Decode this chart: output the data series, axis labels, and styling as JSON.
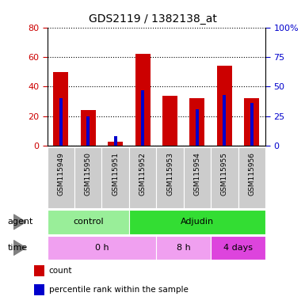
{
  "title": "GDS2119 / 1382138_at",
  "samples": [
    "GSM115949",
    "GSM115950",
    "GSM115951",
    "GSM115952",
    "GSM115953",
    "GSM115954",
    "GSM115955",
    "GSM115956"
  ],
  "count_values": [
    50,
    24,
    3,
    62,
    34,
    32,
    54,
    32
  ],
  "percentile_values": [
    40,
    25,
    8,
    47,
    0,
    31,
    43,
    36
  ],
  "count_color": "#cc0000",
  "percentile_color": "#0000cc",
  "left_ylim": [
    0,
    80
  ],
  "right_ylim": [
    0,
    100
  ],
  "left_yticks": [
    0,
    20,
    40,
    60,
    80
  ],
  "right_yticks": [
    0,
    25,
    50,
    75,
    100
  ],
  "right_yticklabels": [
    "0",
    "25",
    "50",
    "75",
    "100%"
  ],
  "agent_groups": [
    {
      "label": "control",
      "start": 0,
      "end": 3,
      "color": "#99ee99"
    },
    {
      "label": "Adjudin",
      "start": 3,
      "end": 8,
      "color": "#33dd33"
    }
  ],
  "time_groups": [
    {
      "label": "0 h",
      "start": 0,
      "end": 4,
      "color": "#f0a0f0"
    },
    {
      "label": "8 h",
      "start": 4,
      "end": 6,
      "color": "#f0a0f0"
    },
    {
      "label": "4 days",
      "start": 6,
      "end": 8,
      "color": "#dd44dd"
    }
  ],
  "agent_label": "agent",
  "time_label": "time",
  "legend_count": "count",
  "legend_percentile": "percentile rank within the sample",
  "background_color": "#ffffff",
  "tick_label_color_left": "#cc0000",
  "tick_label_color_right": "#0000cc",
  "xlabel_bg_color": "#cccccc",
  "bar_width": 0.55,
  "pct_bar_width": 0.12
}
